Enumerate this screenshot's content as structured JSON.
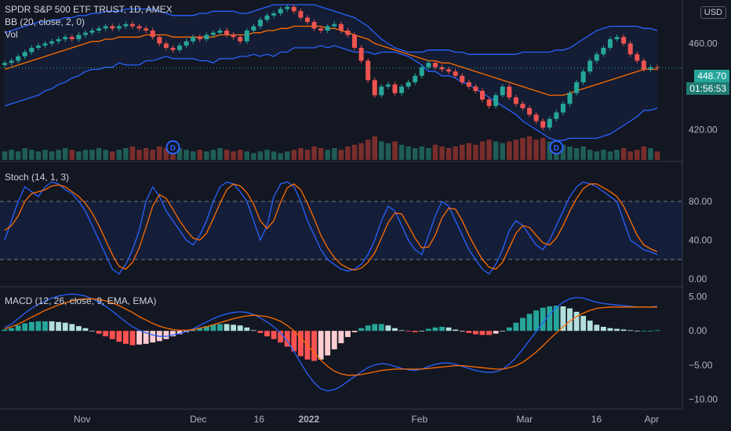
{
  "header": {
    "symbol_line": "SPDR S&P 500 ETF TRUST, 1D, AMEX",
    "bb_label": "BB (20, close, 2, 0)",
    "vol_label": "Vol",
    "currency": "USD",
    "price_badge": "448.70",
    "time_badge": "01:56:53"
  },
  "stoch_label": "Stoch (14, 1, 3)",
  "macd_label": "MACD (12, 26, close, 9, EMA, EMA)",
  "colors": {
    "bg": "#131722",
    "up": "#26a69a",
    "down": "#ef5350",
    "bb": "#2962ff",
    "basis": "#ff6d00",
    "stochK": "#2962ff",
    "stochD": "#ff6d00",
    "grid": "#2a2e39"
  },
  "chart_data": [
    {
      "type": "candlestick",
      "title": "SPDR S&P 500 ETF TRUST, 1D, AMEX",
      "ylim": [
        406,
        478
      ],
      "y_ticks": [
        "460.00",
        "420.00"
      ],
      "x_ticks": [
        "Nov",
        "Dec",
        "16",
        "2022",
        "Feb",
        "Mar",
        "16",
        "Apr"
      ],
      "last_price": 448.7,
      "dividend_markers": [
        "D",
        "D"
      ],
      "closes": [
        451,
        452,
        454,
        456,
        458,
        459,
        460,
        461,
        462,
        463,
        462,
        464,
        465,
        466,
        467,
        468,
        467,
        468,
        469,
        468,
        467,
        466,
        463,
        460,
        458,
        457,
        459,
        461,
        463,
        462,
        464,
        465,
        466,
        464,
        463,
        461,
        466,
        468,
        471,
        473,
        474,
        476,
        477,
        475,
        472,
        470,
        467,
        466,
        468,
        469,
        466,
        464,
        458,
        452,
        443,
        436,
        440,
        441,
        437,
        440,
        442,
        445,
        449,
        451,
        449,
        448,
        447,
        445,
        442,
        440,
        438,
        434,
        431,
        436,
        440,
        435,
        432,
        430,
        427,
        424,
        421,
        425,
        428,
        432,
        437,
        442,
        447,
        452,
        455,
        458,
        462,
        463,
        460,
        455,
        452,
        448,
        449,
        448.7
      ],
      "opens": [
        450,
        451,
        452,
        454,
        456,
        458,
        459,
        460,
        461,
        462,
        463,
        462,
        464,
        465,
        466,
        467,
        468,
        467,
        468,
        469,
        468,
        467,
        466,
        463,
        460,
        458,
        457,
        459,
        461,
        463,
        462,
        464,
        465,
        466,
        464,
        463,
        461,
        466,
        468,
        471,
        473,
        474,
        476,
        477,
        475,
        472,
        470,
        467,
        466,
        468,
        469,
        466,
        464,
        458,
        452,
        443,
        436,
        440,
        441,
        437,
        440,
        442,
        445,
        449,
        451,
        449,
        448,
        447,
        445,
        442,
        440,
        438,
        434,
        431,
        436,
        440,
        435,
        432,
        430,
        427,
        424,
        421,
        425,
        428,
        432,
        437,
        442,
        447,
        452,
        455,
        458,
        462,
        463,
        460,
        455,
        452,
        448,
        449
      ],
      "bb_upper": [
        465,
        466,
        467,
        468,
        469,
        470,
        470,
        471,
        471,
        472,
        472,
        473,
        473,
        474,
        474,
        475,
        475,
        475,
        476,
        476,
        476,
        476,
        476,
        475,
        474,
        473,
        473,
        473,
        473,
        474,
        474,
        475,
        475,
        475,
        475,
        474,
        474,
        475,
        476,
        477,
        478,
        478,
        478,
        478,
        478,
        478,
        478,
        477,
        476,
        475,
        474,
        473,
        472,
        470,
        468,
        465,
        462,
        460,
        458,
        457,
        456,
        456,
        456,
        457,
        457,
        457,
        457,
        456,
        456,
        455,
        455,
        455,
        455,
        455,
        455,
        455,
        455,
        456,
        456,
        456,
        456,
        456,
        457,
        457,
        458,
        460,
        462,
        464,
        466,
        467,
        468,
        468,
        468,
        468,
        468,
        467,
        467,
        466
      ],
      "bb_basis": [
        448,
        449,
        450,
        451,
        452,
        453,
        454,
        455,
        456,
        457,
        458,
        459,
        460,
        461,
        461,
        462,
        462,
        463,
        463,
        463,
        463,
        464,
        464,
        464,
        464,
        463,
        463,
        463,
        463,
        463,
        463,
        463,
        464,
        464,
        464,
        464,
        464,
        465,
        465,
        466,
        466,
        467,
        467,
        468,
        468,
        468,
        468,
        468,
        467,
        467,
        466,
        465,
        464,
        463,
        462,
        460,
        459,
        458,
        457,
        456,
        455,
        454,
        453,
        452,
        452,
        451,
        451,
        450,
        449,
        448,
        447,
        446,
        445,
        444,
        443,
        442,
        441,
        440,
        439,
        438,
        437,
        436,
        436,
        436,
        437,
        438,
        439,
        440,
        441,
        442,
        443,
        444,
        445,
        446,
        447,
        448,
        448,
        448
      ],
      "bb_lower": [
        431,
        432,
        433,
        434,
        435,
        436,
        438,
        439,
        441,
        442,
        444,
        445,
        447,
        448,
        448,
        449,
        449,
        451,
        450,
        450,
        450,
        452,
        452,
        453,
        454,
        453,
        453,
        453,
        453,
        452,
        452,
        451,
        453,
        453,
        453,
        454,
        454,
        455,
        454,
        455,
        454,
        456,
        456,
        458,
        458,
        458,
        458,
        459,
        458,
        459,
        458,
        457,
        456,
        456,
        456,
        455,
        456,
        456,
        456,
        455,
        454,
        452,
        450,
        447,
        447,
        445,
        445,
        444,
        442,
        441,
        439,
        437,
        435,
        433,
        431,
        429,
        427,
        424,
        422,
        420,
        418,
        416,
        415,
        415,
        416,
        416,
        416,
        416,
        416,
        417,
        418,
        420,
        422,
        424,
        426,
        429,
        429,
        430
      ],
      "volume": [
        5,
        6,
        5,
        7,
        6,
        5,
        6,
        5,
        6,
        7,
        6,
        5,
        6,
        6,
        7,
        6,
        5,
        6,
        7,
        8,
        6,
        7,
        6,
        8,
        7,
        6,
        7,
        6,
        5,
        6,
        5,
        6,
        7,
        6,
        5,
        6,
        5,
        4,
        5,
        6,
        5,
        4,
        5,
        6,
        7,
        6,
        8,
        7,
        6,
        7,
        6,
        8,
        9,
        10,
        12,
        14,
        11,
        10,
        11,
        9,
        8,
        7,
        8,
        7,
        9,
        8,
        7,
        8,
        9,
        10,
        9,
        11,
        12,
        11,
        10,
        11,
        12,
        13,
        14,
        12,
        13,
        11,
        10,
        9,
        8,
        7,
        8,
        6,
        5,
        6,
        5,
        6,
        7,
        5,
        6,
        8,
        7,
        5
      ]
    },
    {
      "type": "line",
      "title": "Stoch (14, 1, 3)",
      "ylim": [
        -5,
        118
      ],
      "y_ticks": [
        "80.00",
        "40.00",
        "0.00"
      ],
      "levels": [
        80,
        20
      ],
      "series": [
        {
          "values": [
            40,
            60,
            80,
            95,
            90,
            85,
            95,
            100,
            98,
            92,
            88,
            80,
            70,
            55,
            40,
            25,
            10,
            5,
            15,
            30,
            50,
            80,
            95,
            85,
            70,
            60,
            50,
            40,
            35,
            45,
            60,
            80,
            95,
            100,
            98,
            90,
            80,
            60,
            40,
            55,
            85,
            98,
            100,
            95,
            80,
            60,
            45,
            30,
            20,
            15,
            10,
            8,
            10,
            15,
            25,
            40,
            60,
            75,
            70,
            55,
            40,
            30,
            25,
            45,
            65,
            80,
            75,
            60,
            45,
            30,
            20,
            10,
            5,
            15,
            30,
            50,
            60,
            55,
            45,
            35,
            30,
            40,
            55,
            70,
            85,
            95,
            100,
            98,
            95,
            90,
            85,
            80,
            60,
            40,
            35,
            30,
            28,
            25
          ]
        },
        {
          "values": [
            50,
            55,
            65,
            80,
            88,
            90,
            92,
            96,
            97,
            95,
            90,
            85,
            78,
            68,
            55,
            40,
            25,
            13,
            10,
            17,
            32,
            53,
            75,
            87,
            83,
            72,
            60,
            50,
            42,
            40,
            47,
            62,
            78,
            92,
            98,
            96,
            89,
            77,
            60,
            52,
            60,
            79,
            94,
            98,
            92,
            78,
            62,
            45,
            32,
            22,
            15,
            11,
            9,
            11,
            17,
            27,
            42,
            58,
            68,
            67,
            55,
            42,
            32,
            33,
            45,
            63,
            73,
            72,
            60,
            45,
            32,
            20,
            12,
            10,
            17,
            32,
            47,
            55,
            53,
            45,
            37,
            35,
            42,
            55,
            70,
            83,
            93,
            98,
            98,
            94,
            90,
            85,
            75,
            60,
            45,
            35,
            31,
            28
          ]
        }
      ]
    },
    {
      "type": "bar_line",
      "title": "MACD (12, 26, close, 9, EMA, EMA)",
      "ylim": [
        -11,
        6
      ],
      "y_ticks": [
        "5.00",
        "0.00",
        "−5.00",
        "−10.00"
      ],
      "macd": [
        0.5,
        1.0,
        1.8,
        2.6,
        3.3,
        3.9,
        4.4,
        4.8,
        5.1,
        5.3,
        5.4,
        5.3,
        5.1,
        4.7,
        4.2,
        3.6,
        2.9,
        2.1,
        1.3,
        0.6,
        0.1,
        -0.3,
        -0.6,
        -0.8,
        -0.8,
        -0.6,
        -0.4,
        -0.1,
        0.3,
        0.8,
        1.3,
        1.8,
        2.2,
        2.5,
        2.7,
        2.8,
        2.7,
        2.4,
        1.9,
        1.3,
        0.6,
        -0.3,
        -1.5,
        -3.0,
        -4.7,
        -6.3,
        -7.6,
        -8.5,
        -8.8,
        -8.6,
        -8.1,
        -7.4,
        -6.7,
        -6.0,
        -5.4,
        -5.0,
        -4.8,
        -4.9,
        -5.2,
        -5.5,
        -5.7,
        -5.8,
        -5.6,
        -5.2,
        -4.9,
        -4.7,
        -4.7,
        -4.9,
        -5.2,
        -5.5,
        -5.8,
        -6.0,
        -6.1,
        -6.0,
        -5.6,
        -4.9,
        -3.9,
        -2.7,
        -1.4,
        -0.1,
        1.2,
        2.4,
        3.4,
        4.2,
        4.7,
        4.9,
        4.8,
        4.5,
        4.2,
        4.0,
        3.9,
        3.8,
        3.7,
        3.6,
        3.5,
        3.5,
        3.5,
        3.6
      ],
      "signal": [
        0.3,
        0.6,
        1.0,
        1.5,
        2.0,
        2.5,
        3.0,
        3.4,
        3.8,
        4.1,
        4.4,
        4.6,
        4.7,
        4.7,
        4.6,
        4.4,
        4.1,
        3.7,
        3.2,
        2.7,
        2.1,
        1.6,
        1.1,
        0.7,
        0.4,
        0.2,
        0.1,
        0.1,
        0.2,
        0.4,
        0.6,
        0.9,
        1.2,
        1.5,
        1.8,
        2.0,
        2.2,
        2.3,
        2.2,
        2.1,
        1.8,
        1.4,
        0.8,
        0.0,
        -1.0,
        -2.1,
        -3.2,
        -4.3,
        -5.2,
        -5.9,
        -6.3,
        -6.5,
        -6.5,
        -6.4,
        -6.2,
        -6.0,
        -5.8,
        -5.7,
        -5.6,
        -5.6,
        -5.6,
        -5.6,
        -5.6,
        -5.5,
        -5.4,
        -5.3,
        -5.2,
        -5.1,
        -5.1,
        -5.2,
        -5.3,
        -5.4,
        -5.5,
        -5.6,
        -5.6,
        -5.4,
        -5.1,
        -4.6,
        -3.9,
        -3.1,
        -2.2,
        -1.2,
        -0.3,
        0.6,
        1.4,
        2.1,
        2.6,
        3.0,
        3.3,
        3.4,
        3.5,
        3.5,
        3.5,
        3.5,
        3.5,
        3.5,
        3.5,
        3.5
      ]
    }
  ]
}
